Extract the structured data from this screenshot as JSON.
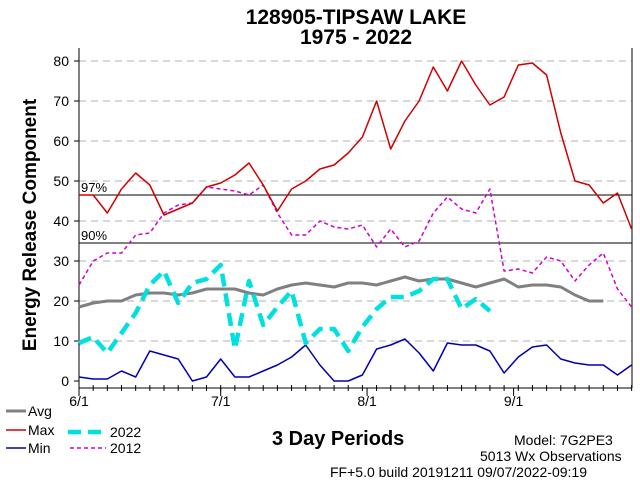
{
  "title_line1": "128905-TIPSAW LAKE",
  "title_line2": "1975 - 2022",
  "legend": {
    "avg": "Avg",
    "max": "Max",
    "min": "Min",
    "y2022": "2022",
    "y2012": "2012"
  },
  "info": {
    "model": "Model:  7G2PE3",
    "obs": "5013 Wx Observations",
    "build": "FF+5.0 build 20191211  09/07/2022-09:19"
  },
  "colors": {
    "avg": "#808080",
    "max": "#d00000",
    "min": "#0000b0",
    "y2022": "#00e0e0",
    "y2012": "#d000d0"
  },
  "chart_data": {
    "type": "line",
    "title": "128905-TIPSAW LAKE 1975 - 2022",
    "xlabel": "3 Day Periods",
    "ylabel": "Energy Release Component",
    "ylim": [
      0,
      85
    ],
    "yticks": [
      0,
      10,
      20,
      30,
      40,
      50,
      60,
      70,
      80
    ],
    "grid": "dashed horizontal",
    "x_tick_labels": [
      {
        "label": "6/1",
        "period": 0
      },
      {
        "label": "7/1",
        "period": 10
      },
      {
        "label": "8/1",
        "period": 20.33
      },
      {
        "label": "9/1",
        "period": 30.67
      }
    ],
    "percentiles": [
      {
        "label": "97%",
        "value": 46.5
      },
      {
        "label": "90%",
        "value": 34.5
      }
    ],
    "series": [
      {
        "name": "Avg",
        "key": "avg",
        "values": [
          18.5,
          19.5,
          20,
          20,
          21.5,
          22,
          22,
          21.5,
          22,
          23,
          23,
          23,
          22,
          21.5,
          23,
          24,
          24.5,
          24,
          23.5,
          24.5,
          24.5,
          24,
          25,
          26,
          25,
          25.5,
          25.5,
          24.5,
          23.5,
          24.5,
          25.5,
          23.5,
          24,
          24,
          23.5,
          21.5,
          20,
          20
        ]
      },
      {
        "name": "Max",
        "key": "max",
        "values": [
          46.5,
          46.5,
          42,
          48,
          52,
          49,
          41.5,
          43,
          44.5,
          48.5,
          49.5,
          51.5,
          54.5,
          49,
          42.5,
          48,
          50,
          53,
          54,
          57,
          61,
          70,
          58,
          65,
          70,
          78.5,
          72.5,
          80,
          74,
          69,
          71,
          79,
          79.5,
          76.5,
          62,
          50,
          49,
          44.5,
          47,
          38
        ]
      },
      {
        "name": "Min",
        "key": "min",
        "values": [
          1,
          0.5,
          0.5,
          2.5,
          1,
          7.5,
          6.5,
          5.5,
          0,
          1,
          5.5,
          1,
          1,
          2.5,
          4,
          6,
          9,
          4,
          0,
          0,
          1.5,
          8,
          9,
          10.5,
          7,
          2.5,
          9.5,
          9,
          9,
          7.5,
          2,
          6,
          8.5,
          9,
          5.5,
          4.5,
          4,
          4,
          1.5,
          4
        ]
      },
      {
        "name": "2022",
        "key": "y2022",
        "values": [
          9.5,
          11,
          7,
          12,
          17,
          24,
          27.5,
          19.5,
          24.5,
          25.5,
          29,
          8,
          25,
          14,
          18.5,
          22.5,
          9.5,
          13,
          13,
          7.5,
          13.5,
          18,
          21,
          21,
          22.5,
          25.5,
          25.5,
          18,
          20.5,
          17.5
        ]
      },
      {
        "name": "2012",
        "key": "y2012",
        "values": [
          24,
          30,
          32,
          32,
          36.5,
          37,
          42,
          44,
          44.5,
          48.5,
          48,
          47.5,
          46.5,
          49,
          42,
          36.5,
          36.5,
          40,
          38.5,
          38,
          39,
          33.5,
          38,
          33.5,
          35,
          42,
          46,
          43,
          42,
          48,
          27.5,
          28,
          27,
          31,
          30,
          25,
          29,
          32,
          23,
          18.5
        ]
      }
    ]
  }
}
